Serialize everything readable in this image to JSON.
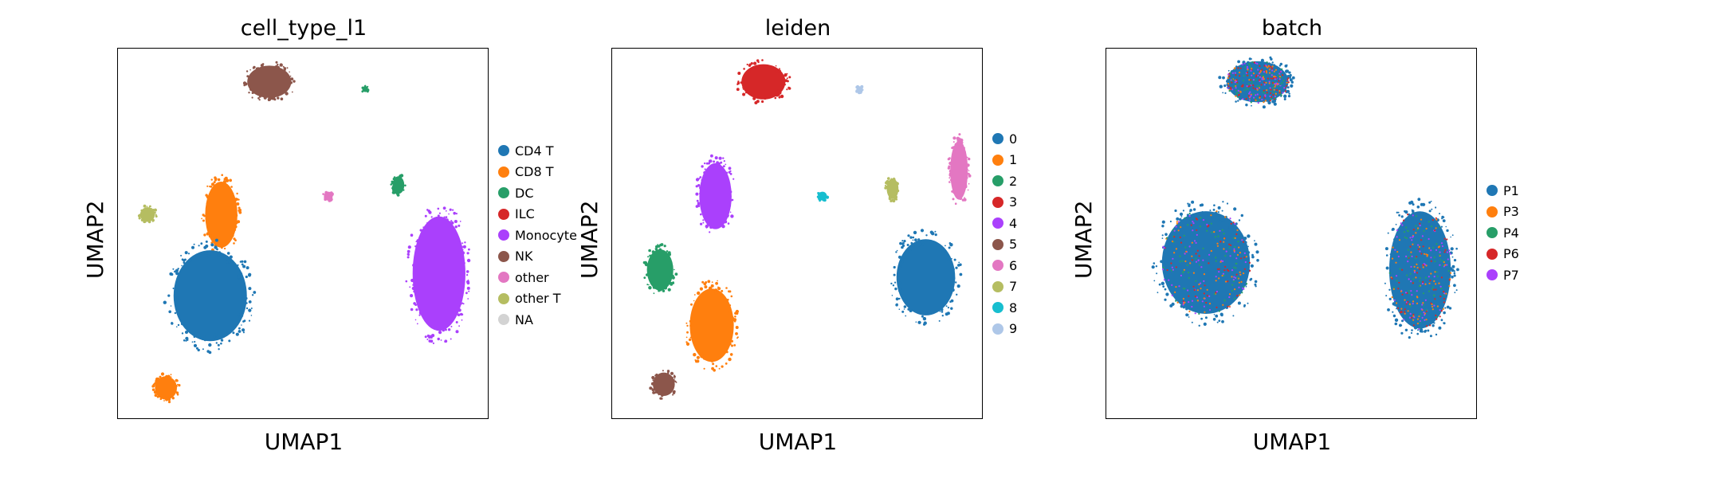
{
  "chart_data": [
    {
      "type": "scatter",
      "title": "cell_type_l1",
      "xlabel": "UMAP1",
      "ylabel": "UMAP2",
      "legend_placement": "right",
      "legend": [
        {
          "label": "CD4 T",
          "color": "#1f77b4"
        },
        {
          "label": "CD8 T",
          "color": "#ff7f0e"
        },
        {
          "label": "DC",
          "color": "#279e68"
        },
        {
          "label": "ILC",
          "color": "#d62728"
        },
        {
          "label": "Monocyte",
          "color": "#aa40fc"
        },
        {
          "label": "NK",
          "color": "#8c564b"
        },
        {
          "label": "other",
          "color": "#e377c2"
        },
        {
          "label": "other T",
          "color": "#b5bd61"
        },
        {
          "label": "NA",
          "color": "#d3d3d3"
        }
      ],
      "clusters": [
        {
          "category": "NK",
          "x": 0.41,
          "y": 0.91
        },
        {
          "category": "CD8 T",
          "x": 0.28,
          "y": 0.55
        },
        {
          "category": "other T",
          "x": 0.08,
          "y": 0.55
        },
        {
          "category": "CD4 T",
          "x": 0.25,
          "y": 0.33
        },
        {
          "category": "CD8 T",
          "x": 0.13,
          "y": 0.08
        },
        {
          "category": "Monocyte",
          "x": 0.87,
          "y": 0.39
        },
        {
          "category": "DC",
          "x": 0.76,
          "y": 0.63
        },
        {
          "category": "other",
          "x": 0.57,
          "y": 0.6
        },
        {
          "category": "DC",
          "x": 0.67,
          "y": 0.89
        }
      ]
    },
    {
      "type": "scatter",
      "title": "leiden",
      "xlabel": "UMAP1",
      "ylabel": "UMAP2",
      "legend_placement": "right",
      "legend": [
        {
          "label": "0",
          "color": "#1f77b4"
        },
        {
          "label": "1",
          "color": "#ff7f0e"
        },
        {
          "label": "2",
          "color": "#279e68"
        },
        {
          "label": "3",
          "color": "#d62728"
        },
        {
          "label": "4",
          "color": "#aa40fc"
        },
        {
          "label": "5",
          "color": "#8c564b"
        },
        {
          "label": "6",
          "color": "#e377c2"
        },
        {
          "label": "7",
          "color": "#b5bd61"
        },
        {
          "label": "8",
          "color": "#17becf"
        },
        {
          "label": "9",
          "color": "#aec7e8"
        }
      ],
      "clusters": [
        {
          "category": "3",
          "x": 0.41,
          "y": 0.91
        },
        {
          "category": "4",
          "x": 0.28,
          "y": 0.6
        },
        {
          "category": "2",
          "x": 0.13,
          "y": 0.4
        },
        {
          "category": "1",
          "x": 0.27,
          "y": 0.25
        },
        {
          "category": "5",
          "x": 0.14,
          "y": 0.09
        },
        {
          "category": "0",
          "x": 0.85,
          "y": 0.38
        },
        {
          "category": "6",
          "x": 0.94,
          "y": 0.67
        },
        {
          "category": "7",
          "x": 0.76,
          "y": 0.62
        },
        {
          "category": "8",
          "x": 0.57,
          "y": 0.6
        },
        {
          "category": "9",
          "x": 0.67,
          "y": 0.89
        }
      ]
    },
    {
      "type": "scatter",
      "title": "batch",
      "xlabel": "UMAP1",
      "ylabel": "UMAP2",
      "legend_placement": "right",
      "legend": [
        {
          "label": "P1",
          "color": "#1f77b4"
        },
        {
          "label": "P3",
          "color": "#ff7f0e"
        },
        {
          "label": "P4",
          "color": "#279e68"
        },
        {
          "label": "P6",
          "color": "#d62728"
        },
        {
          "label": "P7",
          "color": "#aa40fc"
        }
      ],
      "clusters": [
        {
          "category": "P1",
          "x": 0.41,
          "y": 0.91
        },
        {
          "category": "P1",
          "x": 0.27,
          "y": 0.42
        },
        {
          "category": "P1",
          "x": 0.85,
          "y": 0.4
        }
      ]
    }
  ]
}
